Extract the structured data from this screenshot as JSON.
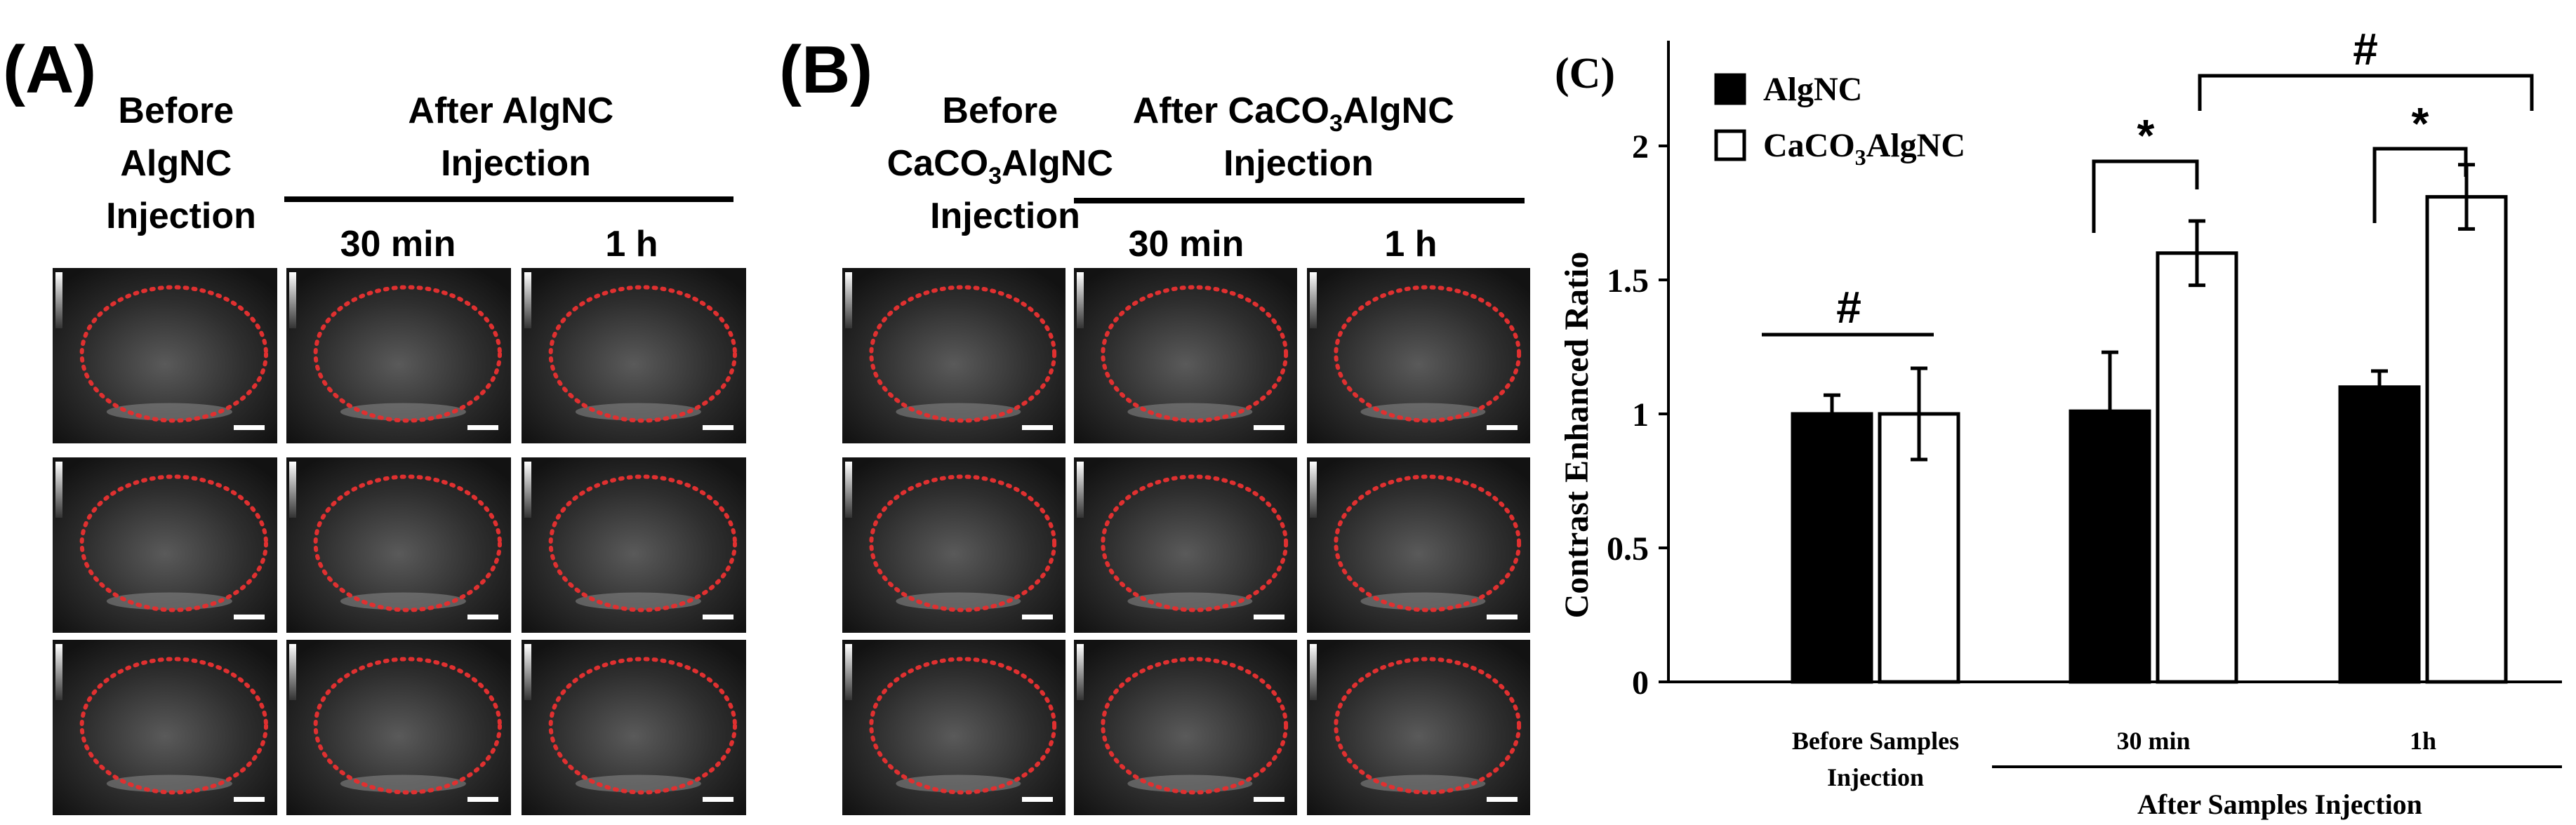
{
  "panel_a": {
    "letter": "(A)",
    "before_label": [
      "Before",
      "AlgNC",
      "Injection"
    ],
    "after_label": [
      "After AlgNC",
      "Injection"
    ],
    "times": [
      "30 min",
      "1 h"
    ]
  },
  "panel_b": {
    "letter": "(B)",
    "before_label": [
      "Before",
      "CaCO",
      "3",
      "AlgNC",
      "Injection"
    ],
    "after_label": [
      "After CaCO",
      "3",
      "AlgNC",
      "Injection"
    ],
    "times": [
      "30 min",
      "1 h"
    ]
  },
  "panel_c": {
    "letter": "(C)",
    "significance": {
      "star": "*",
      "hash": "#"
    }
  },
  "colors": {
    "roi_outline": "#e03030",
    "ultrasound_bg": "#1a1a1a",
    "bar_a": "#000000",
    "bar_b": "#ffffff"
  },
  "chart_data": {
    "type": "bar",
    "categories": [
      "Before Samples Injection",
      "30 min",
      "1h"
    ],
    "group_label": "After Samples Injection",
    "ylabel": "Contrast Enhanced Ratio",
    "ylim": [
      0,
      2
    ],
    "yticks": [
      0,
      0.5,
      1,
      1.5,
      2
    ],
    "legend": "top-left",
    "series": [
      {
        "name": "AlgNC",
        "subscript": "",
        "fill": "#000000",
        "values": [
          1.0,
          1.01,
          1.1
        ],
        "errors": [
          0.07,
          0.22,
          0.06
        ]
      },
      {
        "name": "CaCO",
        "subscript": "3",
        "suffix": "AlgNC",
        "fill": "#ffffff",
        "values": [
          1.0,
          1.6,
          1.81
        ],
        "errors": [
          0.17,
          0.12,
          0.12
        ]
      }
    ]
  }
}
